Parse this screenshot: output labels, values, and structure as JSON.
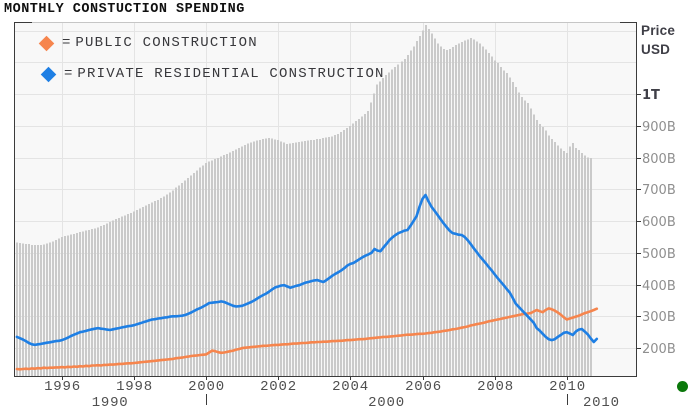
{
  "title": "MONTHLY CONSTUCTION SPENDING",
  "legend": {
    "items": [
      {
        "id": "public-construction",
        "marker": "diamond-icon",
        "marker_color": "#f6854d",
        "equals": "=",
        "label": "PUBLIC CONSTRUCTION"
      },
      {
        "id": "private-residential-construction",
        "marker": "diamond-icon",
        "marker_color": "#1e7fe4",
        "equals": "=",
        "label": "PRIVATE RESIDENTIAL CONSTRUCTION"
      }
    ]
  },
  "right_axis": {
    "title_line1": "Price",
    "title_line2": "USD",
    "ticks": [
      {
        "label": "1T",
        "value": 1000,
        "bold": true
      },
      {
        "label": "900B",
        "value": 900
      },
      {
        "label": "800B",
        "value": 800
      },
      {
        "label": "700B",
        "value": 700
      },
      {
        "label": "600B",
        "value": 600
      },
      {
        "label": "500B",
        "value": 500
      },
      {
        "label": "400B",
        "value": 400
      },
      {
        "label": "300B",
        "value": 300
      },
      {
        "label": "200B",
        "value": 200
      }
    ]
  },
  "x_axis": {
    "year_ticks": [
      {
        "label": "1996",
        "year": 1996
      },
      {
        "label": "1998",
        "year": 1998
      },
      {
        "label": "2000",
        "year": 2000
      },
      {
        "label": "2002",
        "year": 2002
      },
      {
        "label": "2004",
        "year": 2004
      },
      {
        "label": "2006",
        "year": 2006
      },
      {
        "label": "2008",
        "year": 2008
      },
      {
        "label": "2010",
        "year": 2010
      }
    ],
    "decade_boundary_ticks": [
      2000,
      2010
    ],
    "decade_labels": [
      {
        "label": "1990",
        "from": 1994.67,
        "to": 2000
      },
      {
        "label": "2000",
        "from": 2000,
        "to": 2010
      },
      {
        "label": "2010",
        "from": 2010,
        "to": 2011.92
      }
    ]
  },
  "status_dot_color": "#0a780a",
  "colors": {
    "bars": "#cacaca",
    "grid": "#e4e4e4",
    "plot_bg": "#f8f8f8",
    "frame_dark": "#3b3b3b",
    "frame_light": "#c6c6c6",
    "tick_label_gray": "#8f8f8f",
    "tick_label_dark": "#3f3f47",
    "x_label": "#4f4f4f",
    "public_line": "#f6854d",
    "private_line": "#1e7fe4"
  },
  "chart_data": {
    "type": "mixed",
    "title": "MONTHLY CONSTUCTION SPENDING",
    "ylabel": "Price USD",
    "y_unit": "billions of USD",
    "x_unit": "year (monthly samples)",
    "xlim": [
      1994.67,
      2011.92
    ],
    "ylim": [
      112,
      1227
    ],
    "grid": {
      "vertical_every_years": 2,
      "vertical_from": 1996,
      "vertical_to": 2010,
      "horizontal_from": 200,
      "horizontal_to": 1200,
      "horizontal_step": 100
    },
    "legend_position": "top-left",
    "series": [
      {
        "id": "total-spending-bars",
        "type": "bar",
        "color": "#cacaca",
        "x_start": 1994.75,
        "x_step": 0.083333,
        "values": [
          532,
          531,
          529,
          528,
          527,
          525,
          524,
          525,
          525,
          526,
          529,
          533,
          536,
          541,
          545,
          550,
          553,
          555,
          558,
          560,
          563,
          565,
          567,
          570,
          572,
          575,
          577,
          580,
          584,
          588,
          592,
          597,
          601,
          606,
          610,
          614,
          618,
          622,
          626,
          630,
          635,
          639,
          644,
          649,
          653,
          658,
          663,
          667,
          672,
          678,
          684,
          690,
          697,
          705,
          712,
          720,
          728,
          736,
          744,
          752,
          760,
          768,
          775,
          783,
          787,
          791,
          795,
          799,
          804,
          808,
          812,
          816,
          820,
          825,
          830,
          835,
          839,
          844,
          848,
          851,
          853,
          856,
          858,
          860,
          862,
          860,
          857,
          855,
          851,
          847,
          843,
          844,
          846,
          847,
          849,
          850,
          852,
          853,
          855,
          856,
          858,
          859,
          861,
          863,
          864,
          866,
          871,
          875,
          880,
          887,
          893,
          900,
          907,
          915,
          922,
          930,
          938,
          946,
          974,
          1002,
          1030,
          1040,
          1050,
          1060,
          1068,
          1077,
          1085,
          1093,
          1102,
          1110,
          1123,
          1137,
          1150,
          1167,
          1183,
          1200,
          1217,
          1205,
          1190,
          1175,
          1160,
          1150,
          1142,
          1139,
          1142,
          1148,
          1155,
          1160,
          1164,
          1168,
          1172,
          1176,
          1172,
          1166,
          1160,
          1150,
          1140,
          1130,
          1118,
          1105,
          1098,
          1085,
          1075,
          1066,
          1052,
          1038,
          1022,
          1005,
          990,
          980,
          972,
          955,
          935,
          918,
          905,
          896,
          885,
          870,
          858,
          849,
          838,
          828,
          820,
          814,
          835,
          846,
          830,
          824,
          815,
          806,
          800,
          798
        ]
      },
      {
        "id": "public-construction",
        "name": "PUBLIC CONSTRUCTION",
        "type": "line",
        "color": "#f6854d",
        "x_start": 1994.75,
        "x_step": 0.083333,
        "values": [
          134,
          133,
          134,
          135,
          134,
          136,
          135,
          137,
          136,
          138,
          137,
          138,
          138,
          139,
          139,
          140,
          139,
          141,
          140,
          142,
          141,
          143,
          142,
          144,
          143,
          145,
          145,
          146,
          145,
          147,
          147,
          148,
          148,
          149,
          150,
          150,
          151,
          152,
          152,
          153,
          154,
          155,
          156,
          157,
          158,
          159,
          160,
          161,
          162,
          163,
          164,
          165,
          166,
          168,
          169,
          170,
          172,
          173,
          175,
          176,
          177,
          178,
          179,
          180,
          186,
          192,
          190,
          187,
          185,
          186,
          188,
          190,
          192,
          195,
          197,
          200,
          201,
          202,
          203,
          204,
          205,
          206,
          207,
          207,
          208,
          209,
          210,
          210,
          211,
          212,
          212,
          213,
          214,
          214,
          215,
          216,
          216,
          217,
          218,
          218,
          219,
          219,
          220,
          220,
          221,
          222,
          222,
          223,
          223,
          224,
          225,
          225,
          226,
          227,
          228,
          228,
          229,
          230,
          231,
          232,
          233,
          234,
          235,
          235,
          236,
          237,
          238,
          239,
          240,
          241,
          242,
          242,
          243,
          244,
          245,
          245,
          246,
          247,
          248,
          250,
          251,
          252,
          254,
          255,
          257,
          259,
          260,
          262,
          264,
          266,
          268,
          271,
          273,
          275,
          277,
          279,
          281,
          284,
          286,
          288,
          290,
          292,
          294,
          296,
          298,
          300,
          302,
          304,
          306,
          308,
          309,
          310,
          315,
          320,
          316,
          313,
          320,
          325,
          322,
          318,
          312,
          305,
          297,
          290,
          293,
          296,
          299,
          302,
          306,
          310,
          313,
          316,
          320,
          324
        ]
      },
      {
        "id": "private-residential-construction",
        "name": "PRIVATE RESIDENTIAL CONSTRUCTION",
        "type": "line",
        "color": "#1e7fe4",
        "x_start": 1994.75,
        "x_step": 0.083333,
        "values": [
          235,
          231,
          227,
          222,
          216,
          212,
          210,
          212,
          213,
          215,
          217,
          218,
          220,
          222,
          223,
          225,
          229,
          233,
          238,
          242,
          246,
          250,
          252,
          254,
          257,
          259,
          261,
          263,
          261,
          260,
          258,
          257,
          259,
          261,
          263,
          265,
          267,
          269,
          270,
          272,
          275,
          278,
          281,
          284,
          287,
          290,
          291,
          293,
          294,
          296,
          297,
          299,
          300,
          300,
          301,
          302,
          304,
          308,
          312,
          317,
          322,
          326,
          331,
          336,
          342,
          343,
          344,
          345,
          347,
          345,
          341,
          337,
          333,
          331,
          332,
          333,
          337,
          341,
          345,
          350,
          356,
          362,
          367,
          372,
          378,
          385,
          391,
          394,
          397,
          398,
          394,
          390,
          393,
          396,
          398,
          402,
          406,
          408,
          411,
          413,
          414,
          411,
          408,
          414,
          421,
          428,
          434,
          439,
          445,
          452,
          460,
          465,
          468,
          474,
          480,
          486,
          491,
          495,
          500,
          512,
          507,
          505,
          517,
          528,
          540,
          549,
          556,
          562,
          566,
          570,
          572,
          585,
          600,
          615,
          645,
          670,
          682,
          662,
          645,
          632,
          619,
          606,
          593,
          581,
          570,
          562,
          560,
          557,
          556,
          550,
          540,
          528,
          515,
          503,
          490,
          479,
          468,
          456,
          445,
          432,
          420,
          409,
          398,
          386,
          375,
          358,
          340,
          330,
          320,
          310,
          300,
          290,
          280,
          263,
          255,
          245,
          235,
          228,
          225,
          228,
          235,
          241,
          248,
          250,
          246,
          241,
          252,
          258,
          260,
          252,
          243,
          230,
          219,
          229
        ]
      }
    ]
  }
}
